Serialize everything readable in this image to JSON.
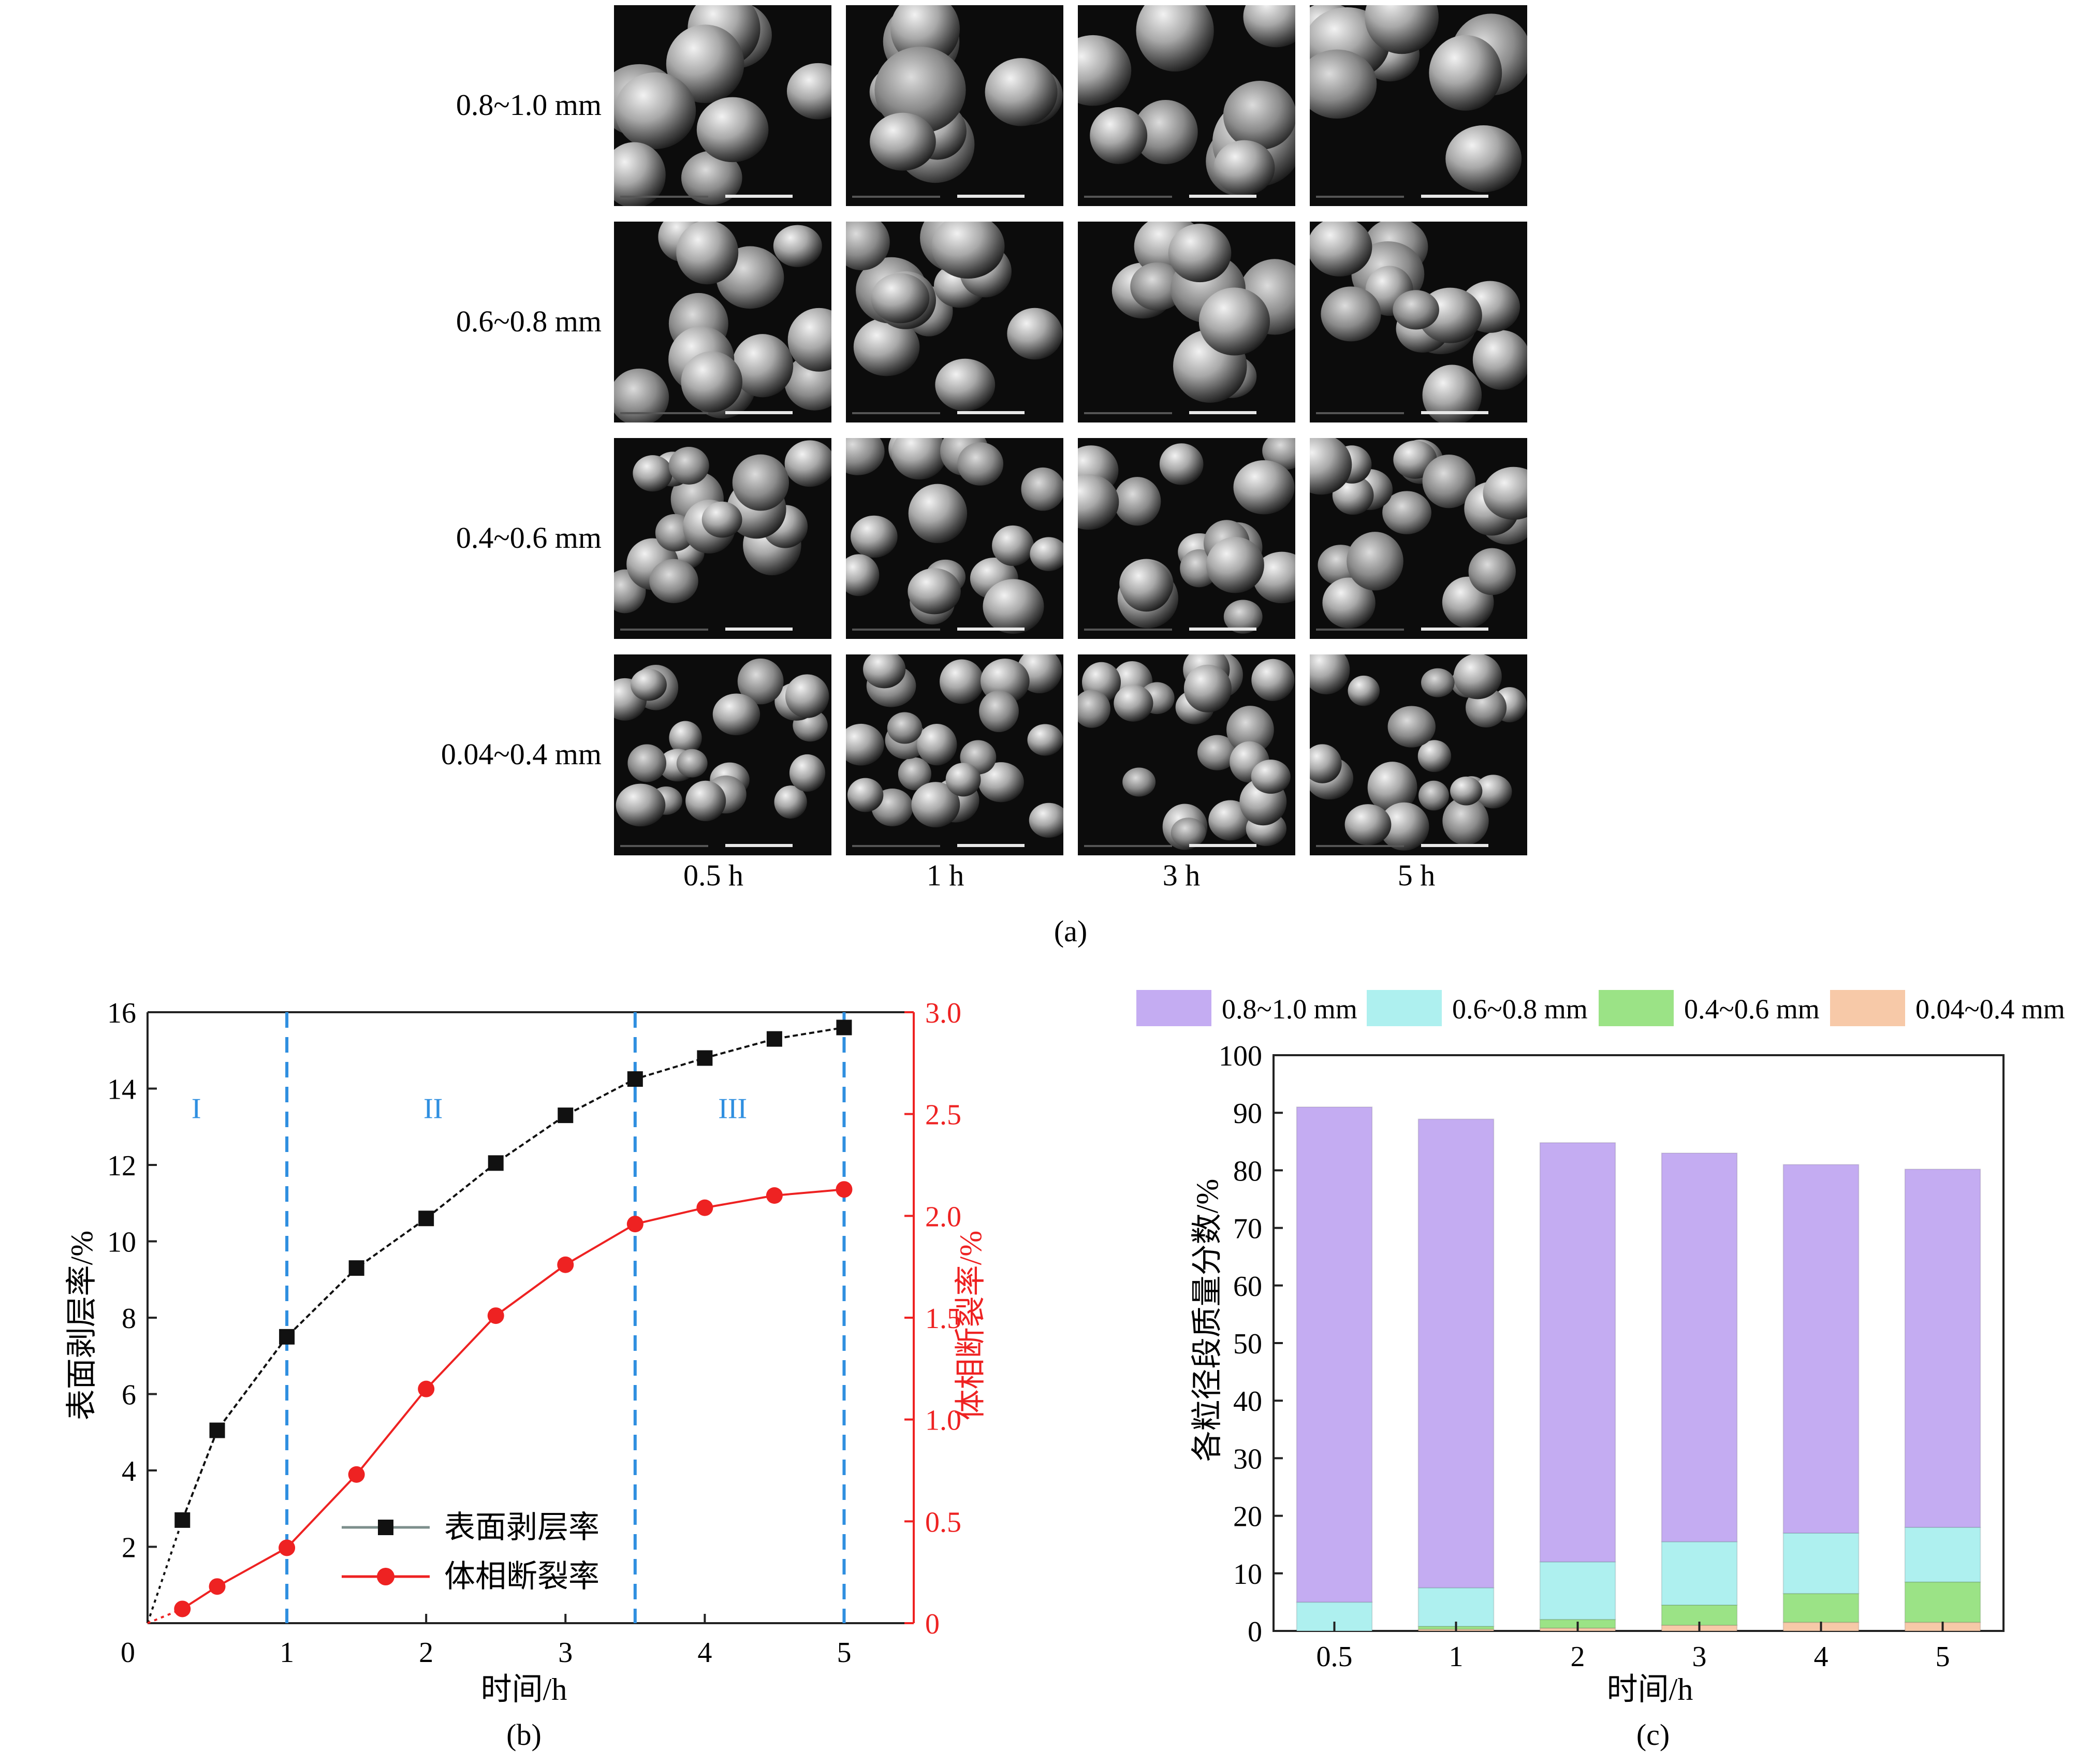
{
  "panel_a": {
    "row_labels": [
      "0.8~1.0 mm",
      "0.6~0.8 mm",
      "0.4~0.6 mm",
      "0.04~0.4 mm"
    ],
    "col_labels": [
      "0.5 h",
      "1 h",
      "3 h",
      "5 h"
    ],
    "caption": "(a)"
  },
  "chart_data": [
    {
      "type": "line",
      "caption": "(b)",
      "xlabel": "时间/h",
      "ylabel": "表面剥层率/%",
      "ylabel_right": "体相断裂率/%",
      "xlim": [
        0,
        5.5
      ],
      "ylim": [
        0,
        16
      ],
      "ylim_right": [
        0,
        3.0
      ],
      "x_ticks": [
        "0",
        "1",
        "2",
        "3",
        "4",
        "5"
      ],
      "y_ticks": [
        "2",
        "4",
        "6",
        "8",
        "10",
        "12",
        "14",
        "16"
      ],
      "y_ticks_right": [
        "0",
        "0.5",
        "1.0",
        "1.5",
        "2.0",
        "2.5",
        "3.0"
      ],
      "stage_lines_x": [
        1,
        3.5,
        5
      ],
      "stage_labels": [
        {
          "text": "I",
          "x": 0.35,
          "y": 13.5
        },
        {
          "text": "II",
          "x": 2.05,
          "y": 13.5
        },
        {
          "text": "III",
          "x": 4.2,
          "y": 13.5
        }
      ],
      "series": [
        {
          "name": "表面剥层率",
          "axis": "left",
          "color": "#111111",
          "marker": "square",
          "x": [
            0.25,
            0.5,
            1,
            1.5,
            2,
            2.5,
            3,
            3.5,
            4,
            4.5,
            5
          ],
          "y": [
            2.7,
            5.05,
            7.5,
            9.3,
            10.6,
            12.05,
            13.3,
            14.25,
            14.8,
            15.3,
            15.6
          ]
        },
        {
          "name": "体相断裂率",
          "axis": "right",
          "color": "#ee2222",
          "marker": "circle",
          "x": [
            0.25,
            0.5,
            1,
            1.5,
            2,
            2.5,
            3,
            3.5,
            4,
            4.5,
            5
          ],
          "y": [
            0.07,
            0.18,
            0.37,
            0.73,
            1.15,
            1.51,
            1.76,
            1.96,
            2.04,
            2.1,
            2.13
          ]
        }
      ],
      "legend_position": "lower-center",
      "stage_line_color": "#2f8fe0"
    },
    {
      "type": "bar",
      "stacked": true,
      "caption": "(c)",
      "xlabel": "时间/h",
      "ylabel": "各粒径段质量分数/%",
      "ylim": [
        0,
        100
      ],
      "y_ticks": [
        "0",
        "10",
        "20",
        "30",
        "40",
        "50",
        "60",
        "70",
        "80",
        "90",
        "100"
      ],
      "categories": [
        "0.5",
        "1",
        "2",
        "3",
        "4",
        "5"
      ],
      "series": [
        {
          "name": "0.04~0.4 mm",
          "color": "#f7c9a8",
          "values": [
            0,
            0.3,
            0.5,
            1.0,
            1.5,
            1.5
          ]
        },
        {
          "name": "0.4~0.6 mm",
          "color": "#9be386",
          "values": [
            0,
            0.5,
            1.5,
            3.5,
            5.0,
            7.0
          ]
        },
        {
          "name": "0.6~0.8 mm",
          "color": "#aef0ef",
          "values": [
            5.0,
            6.7,
            10.0,
            11.0,
            10.5,
            9.5
          ]
        },
        {
          "name": "0.8~1.0 mm",
          "color": "#c4acf2",
          "values": [
            86.0,
            81.4,
            72.8,
            67.5,
            64.0,
            62.2
          ]
        }
      ],
      "legend_position": "top"
    }
  ]
}
